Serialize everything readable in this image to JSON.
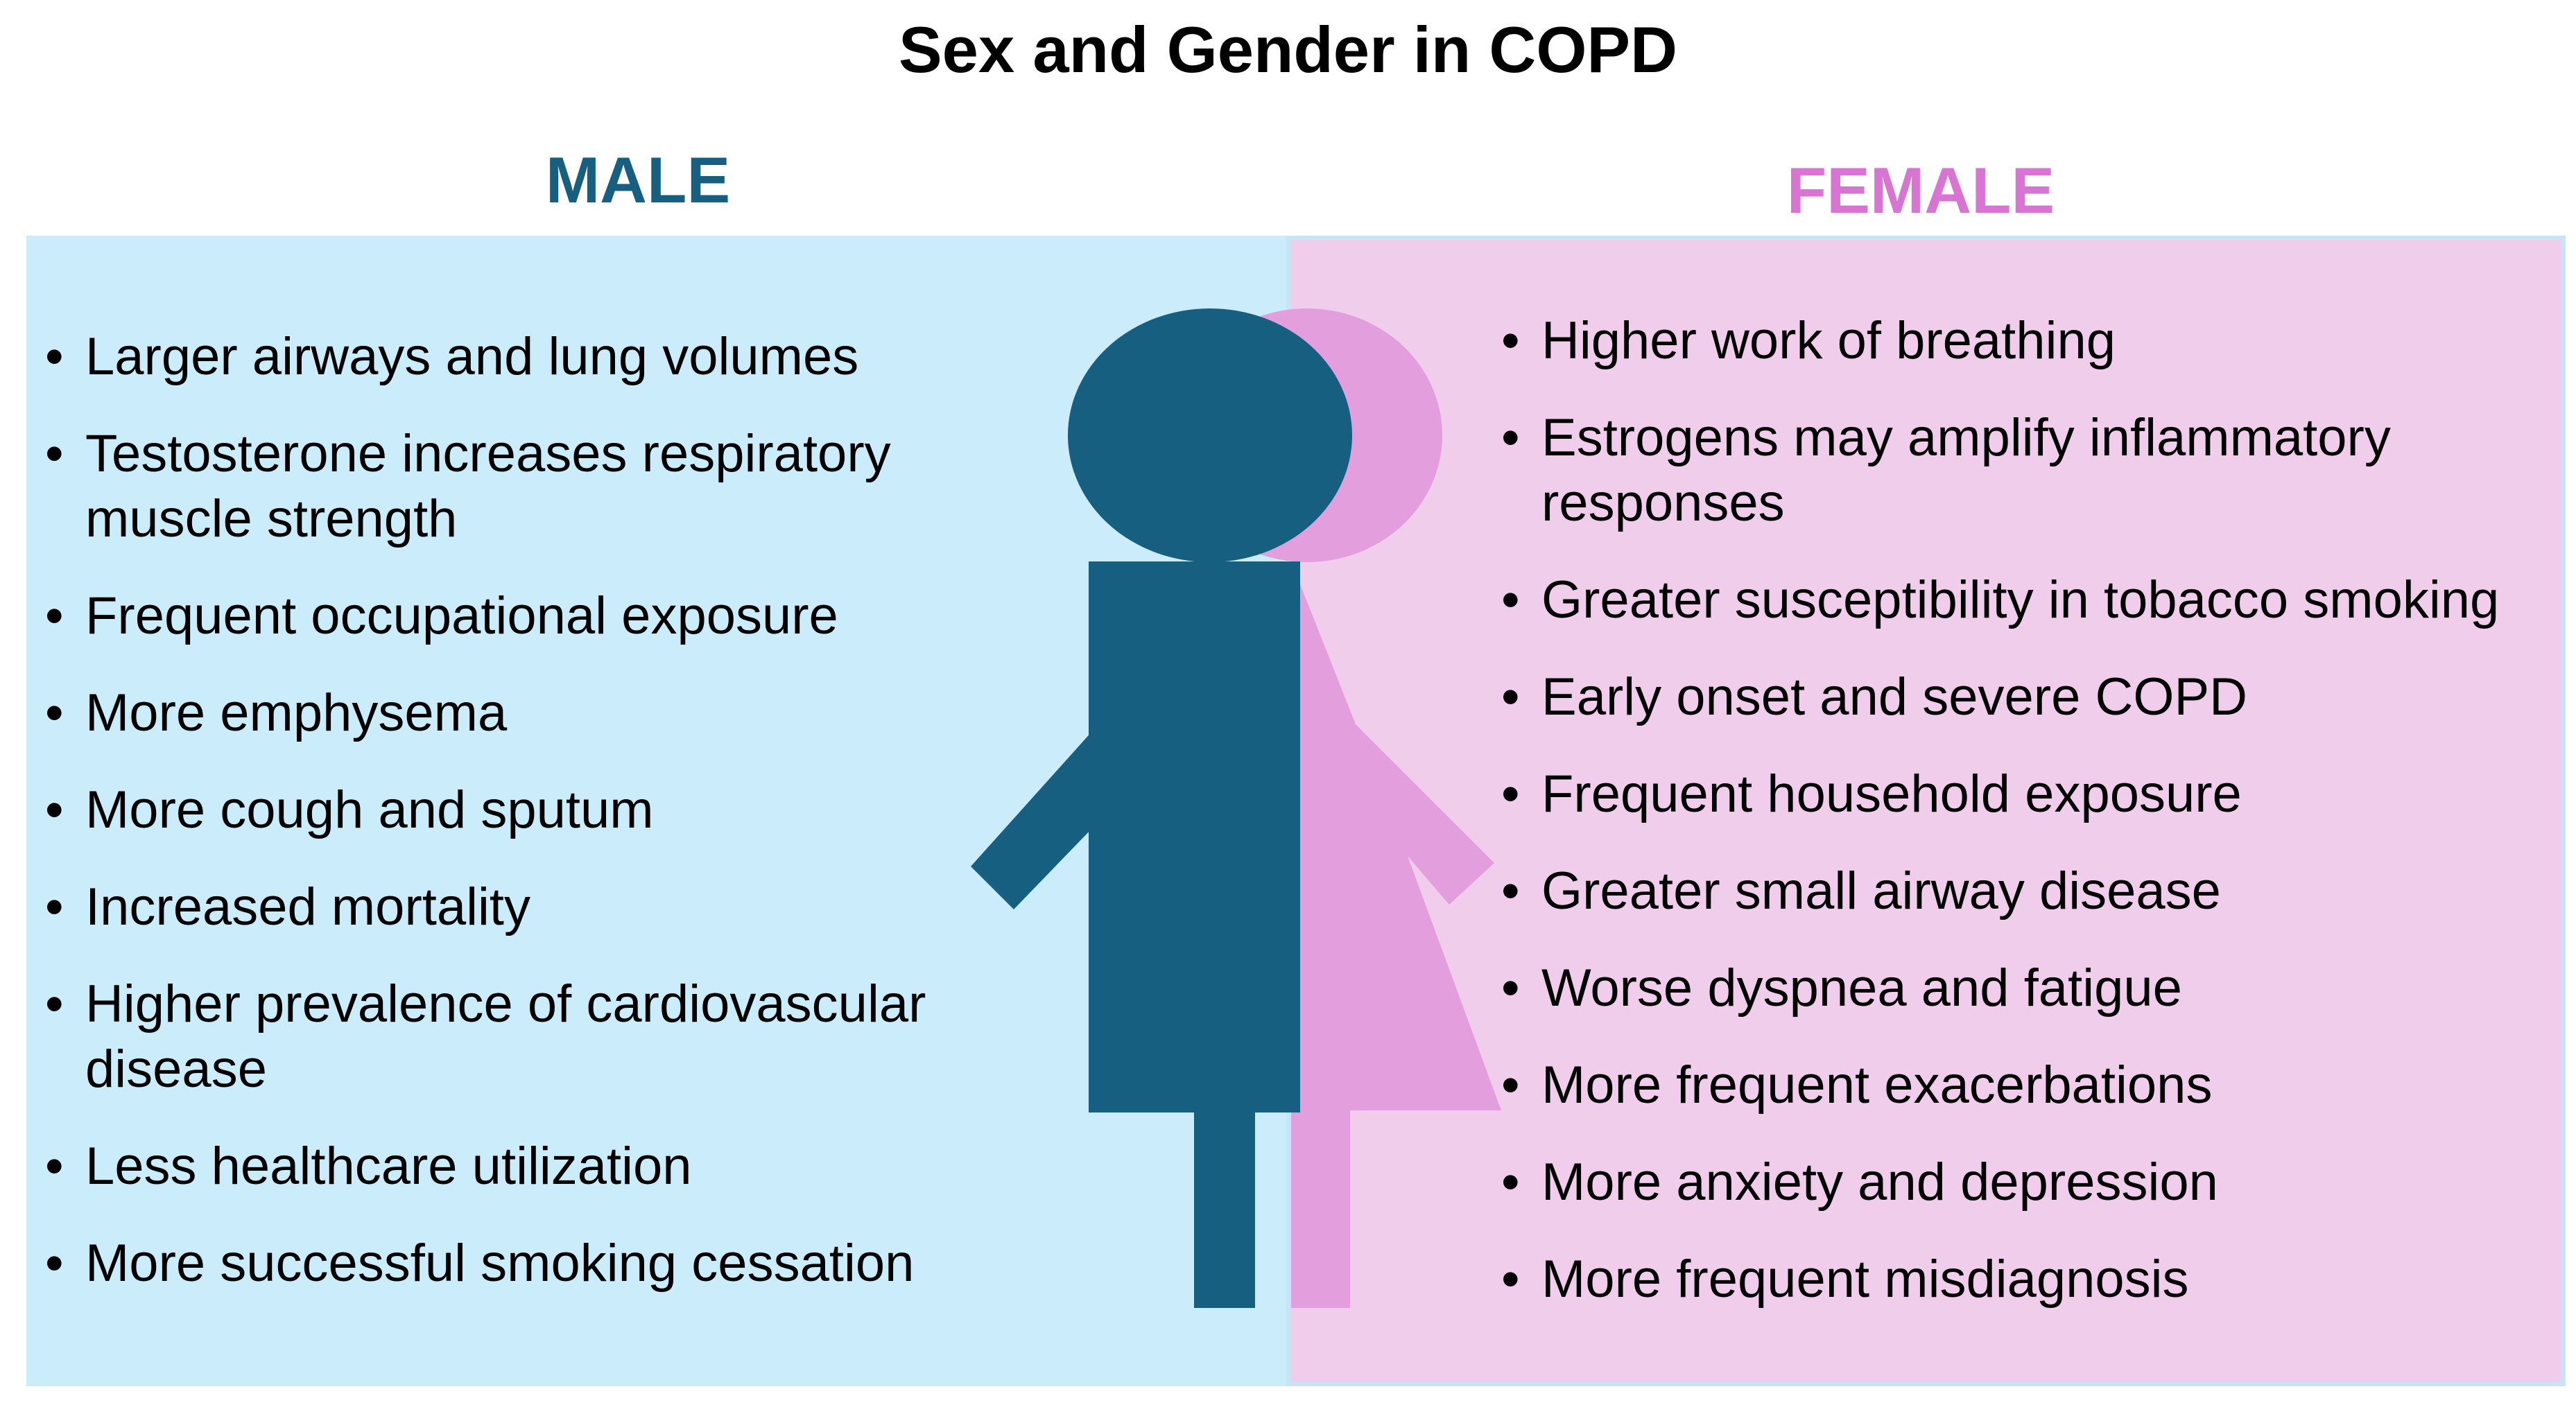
{
  "title": "Sex and Gender in COPD",
  "male": {
    "heading": "MALE",
    "color": "#175f80",
    "panel_color": "#cbecfa",
    "items": [
      "Larger airways and lung volumes",
      "Testosterone increases respiratory muscle strength",
      "Frequent occupational exposure",
      "More emphysema",
      "More cough and sputum",
      "Increased mortality",
      "Higher prevalence of cardiovascular disease",
      "Less healthcare utilization",
      "More successful smoking cessation"
    ]
  },
  "female": {
    "heading": "FEMALE",
    "color": "#d874d2",
    "panel_color": "#f0cdeb",
    "items": [
      "Higher work of breathing",
      "Estrogens may amplify inflammatory responses",
      "Greater susceptibility in tobacco smoking",
      "Early onset and severe COPD",
      "Frequent household exposure",
      "Greater small airway disease",
      "Worse dyspnea and fatigue",
      "More frequent exacerbations",
      "More anxiety and depression",
      "More frequent misdiagnosis"
    ]
  },
  "icons": {
    "male_figure": "male-figure-icon",
    "female_figure": "female-figure-icon"
  }
}
